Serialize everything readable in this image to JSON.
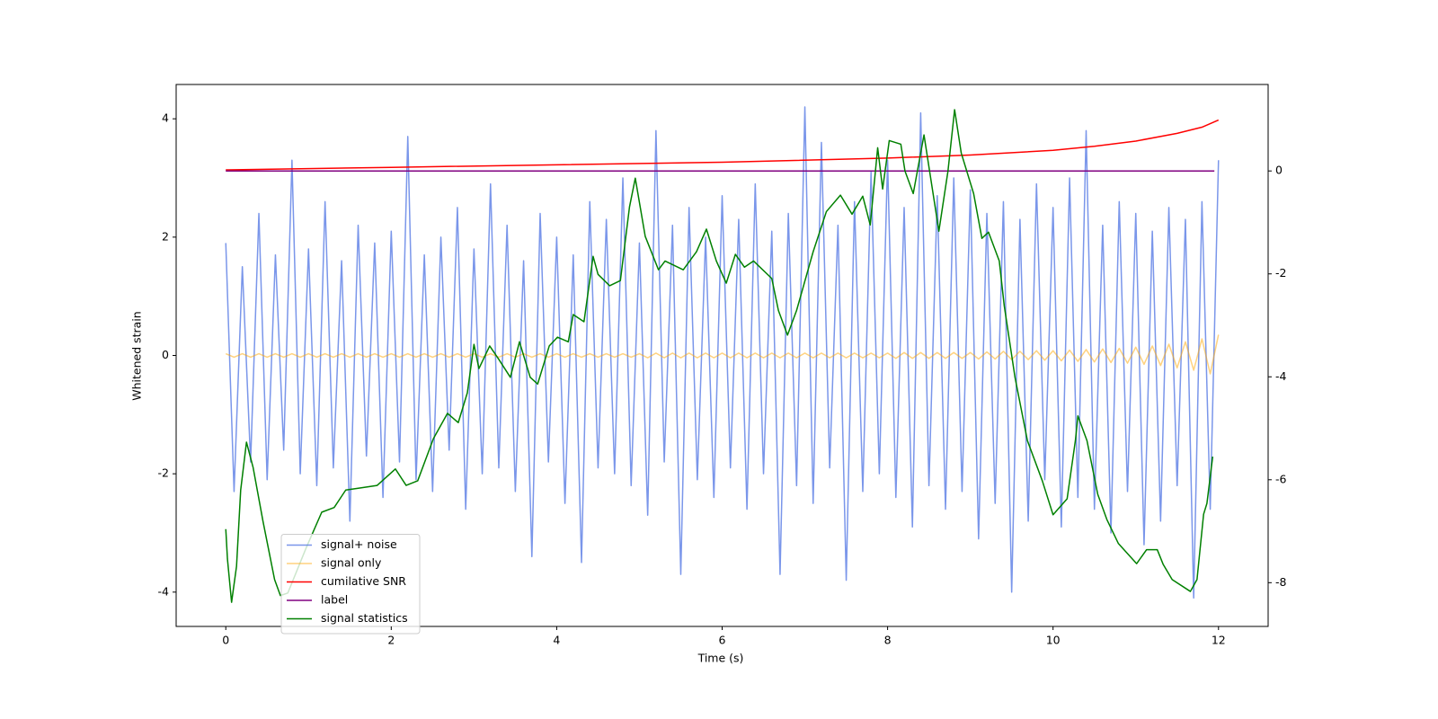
{
  "chart_data": {
    "type": "line",
    "xlabel": "Time (s)",
    "ylabel": "Whitened strain",
    "xlim": [
      -0.6,
      12.6
    ],
    "xticks": [
      0,
      2,
      4,
      6,
      8,
      10,
      12
    ],
    "ylim": [
      -4.58,
      4.58
    ],
    "yticks": [
      -4,
      -2,
      0,
      2,
      4
    ],
    "y2lim": [
      -8.85,
      1.68
    ],
    "y2ticks": [
      -8,
      -6,
      -4,
      -2,
      0
    ],
    "legend": "lower left",
    "x": [
      0,
      0.1,
      0.2,
      0.3,
      0.4,
      0.5,
      0.6,
      0.7,
      0.8,
      0.9,
      1,
      1.1,
      1.2,
      1.3,
      1.4,
      1.5,
      1.6,
      1.7,
      1.8,
      1.9,
      2,
      2.1,
      2.2,
      2.3,
      2.4,
      2.5,
      2.6,
      2.7,
      2.8,
      2.9,
      3,
      3.1,
      3.2,
      3.3,
      3.4,
      3.5,
      3.6,
      3.7,
      3.8,
      3.9,
      4,
      4.1,
      4.2,
      4.3,
      4.4,
      4.5,
      4.6,
      4.7,
      4.8,
      4.9,
      5,
      5.1,
      5.2,
      5.3,
      5.4,
      5.5,
      5.6,
      5.7,
      5.8,
      5.9,
      6,
      6.1,
      6.2,
      6.3,
      6.4,
      6.5,
      6.6,
      6.7,
      6.8,
      6.9,
      7,
      7.1,
      7.2,
      7.3,
      7.4,
      7.5,
      7.6,
      7.7,
      7.8,
      7.9,
      8,
      8.1,
      8.2,
      8.3,
      8.4,
      8.5,
      8.6,
      8.7,
      8.8,
      8.9,
      9,
      9.1,
      9.2,
      9.3,
      9.4,
      9.5,
      9.6,
      9.7,
      9.8,
      9.9,
      10,
      10.1,
      10.2,
      10.3,
      10.4,
      10.5,
      10.6,
      10.7,
      10.8,
      10.9,
      11,
      11.1,
      11.2,
      11.3,
      11.4,
      11.5,
      11.6,
      11.7,
      11.8,
      11.9,
      12
    ],
    "series": [
      {
        "name": "signal+ noise",
        "color": "#4169e1",
        "alpha": 0.7,
        "values": [
          1.9,
          -2.3,
          1.5,
          -1.8,
          2.4,
          -2.1,
          1.7,
          -1.6,
          3.3,
          -2.0,
          1.8,
          -2.2,
          2.6,
          -1.9,
          1.6,
          -2.8,
          2.2,
          -1.7,
          1.9,
          -2.4,
          2.1,
          -1.8,
          3.7,
          -2.1,
          1.7,
          -2.3,
          2.0,
          -1.6,
          2.5,
          -2.6,
          1.8,
          -2.0,
          2.9,
          -1.9,
          2.2,
          -2.3,
          1.6,
          -3.4,
          2.4,
          -1.8,
          2.0,
          -2.5,
          1.7,
          -3.5,
          2.6,
          -1.9,
          2.3,
          -2.0,
          3.0,
          -2.2,
          1.9,
          -2.7,
          3.8,
          -1.8,
          2.2,
          -3.7,
          2.5,
          -2.1,
          2.0,
          -2.4,
          2.7,
          -1.9,
          2.3,
          -2.6,
          2.9,
          -2.0,
          2.1,
          -3.7,
          2.4,
          -2.2,
          4.2,
          -2.5,
          3.6,
          -1.9,
          2.2,
          -3.8,
          2.6,
          -2.3,
          3.1,
          -2.0,
          3.3,
          -2.4,
          2.5,
          -2.9,
          4.1,
          -2.2,
          2.7,
          -2.6,
          3.0,
          -2.3,
          2.8,
          -3.1,
          2.4,
          -2.5,
          2.6,
          -4.0,
          2.3,
          -2.8,
          2.9,
          -2.1,
          2.5,
          -2.9,
          3.0,
          -2.4,
          3.8,
          -2.6,
          2.2,
          -3.0,
          2.6,
          -2.3,
          2.4,
          -3.2,
          2.1,
          -2.8,
          2.5,
          -2.2,
          2.3,
          -4.1,
          2.6,
          -2.6,
          3.3
        ]
      },
      {
        "name": "signal only",
        "color": "#ffa500",
        "alpha": 0.5,
        "values": [
          0.03,
          -0.03,
          0.03,
          -0.03,
          0.03,
          -0.03,
          0.03,
          -0.03,
          0.03,
          -0.03,
          0.03,
          -0.03,
          0.03,
          -0.03,
          0.03,
          -0.03,
          0.03,
          -0.03,
          0.03,
          -0.03,
          0.03,
          -0.03,
          0.03,
          -0.03,
          0.03,
          -0.03,
          0.03,
          -0.03,
          0.03,
          -0.03,
          0.03,
          -0.03,
          0.03,
          -0.03,
          0.03,
          -0.03,
          0.03,
          -0.03,
          0.03,
          -0.03,
          0.03,
          -0.03,
          0.03,
          -0.03,
          0.03,
          -0.03,
          0.03,
          -0.03,
          0.03,
          -0.03,
          0.03,
          -0.04,
          0.04,
          -0.04,
          0.04,
          -0.04,
          0.04,
          -0.04,
          0.04,
          -0.04,
          0.04,
          -0.04,
          0.04,
          -0.04,
          0.04,
          -0.04,
          0.04,
          -0.04,
          0.04,
          -0.04,
          0.04,
          -0.04,
          0.04,
          -0.04,
          0.04,
          -0.04,
          0.04,
          -0.04,
          0.04,
          -0.04,
          0.04,
          -0.05,
          0.05,
          -0.05,
          0.05,
          -0.05,
          0.05,
          -0.05,
          0.05,
          -0.05,
          0.05,
          -0.06,
          0.06,
          -0.06,
          0.07,
          -0.07,
          0.07,
          -0.07,
          0.08,
          -0.08,
          0.08,
          -0.09,
          0.09,
          -0.1,
          0.1,
          -0.11,
          0.11,
          -0.12,
          0.12,
          -0.13,
          0.14,
          -0.15,
          0.16,
          -0.17,
          0.19,
          -0.21,
          0.23,
          -0.25,
          0.28,
          -0.31,
          0.35
        ]
      },
      {
        "name": "cumilative SNR",
        "color": "#ff0000",
        "axis": "y2",
        "x": [
          0,
          2,
          4,
          6,
          8,
          9,
          10,
          10.5,
          11,
          11.5,
          11.8,
          12
        ],
        "values": [
          0.02,
          0.07,
          0.12,
          0.17,
          0.25,
          0.31,
          0.4,
          0.48,
          0.58,
          0.73,
          0.85,
          0.99
        ]
      },
      {
        "name": "label",
        "color": "#800080",
        "axis": "y2",
        "x": [
          0,
          11.95
        ],
        "values": [
          0,
          0
        ]
      },
      {
        "name": "signal statistics",
        "color": "#008000",
        "axis": "y2",
        "x": [
          0,
          0.02,
          0.07,
          0.13,
          0.18,
          0.25,
          0.33,
          0.45,
          0.59,
          0.66,
          0.75,
          0.97,
          1.16,
          1.31,
          1.45,
          1.62,
          1.83,
          2.05,
          2.18,
          2.32,
          2.51,
          2.68,
          2.81,
          2.92,
          3.0,
          3.06,
          3.19,
          3.3,
          3.44,
          3.55,
          3.68,
          3.77,
          3.91,
          4.01,
          4.14,
          4.2,
          4.33,
          4.44,
          4.5,
          4.64,
          4.77,
          4.88,
          4.95,
          5.07,
          5.23,
          5.31,
          5.53,
          5.69,
          5.81,
          5.93,
          6.05,
          6.16,
          6.27,
          6.38,
          6.6,
          6.68,
          6.79,
          6.9,
          7.1,
          7.26,
          7.43,
          7.57,
          7.7,
          7.79,
          7.88,
          7.94,
          8.02,
          8.16,
          8.21,
          8.31,
          8.44,
          8.62,
          8.73,
          8.81,
          8.89,
          9.04,
          9.14,
          9.22,
          9.35,
          9.41,
          9.54,
          9.69,
          9.87,
          10.0,
          10.17,
          10.27,
          10.3,
          10.41,
          10.54,
          10.65,
          10.79,
          11.01,
          11.13,
          11.26,
          11.33,
          11.44,
          11.66,
          11.74,
          11.82,
          11.86,
          11.93
        ],
        "values": [
          -6.96,
          -7.54,
          -8.38,
          -7.68,
          -6.2,
          -5.27,
          -5.76,
          -6.81,
          -7.94,
          -8.25,
          -8.2,
          -7.33,
          -6.63,
          -6.54,
          -6.2,
          -6.16,
          -6.11,
          -5.79,
          -6.11,
          -6.02,
          -5.2,
          -4.71,
          -4.89,
          -4.31,
          -3.37,
          -3.84,
          -3.4,
          -3.66,
          -4.01,
          -3.32,
          -4.01,
          -4.14,
          -3.4,
          -3.23,
          -3.32,
          -2.79,
          -2.93,
          -1.66,
          -2.01,
          -2.23,
          -2.13,
          -0.7,
          -0.14,
          -1.27,
          -1.92,
          -1.75,
          -1.92,
          -1.57,
          -1.13,
          -1.75,
          -2.18,
          -1.62,
          -1.87,
          -1.75,
          -2.09,
          -2.71,
          -3.19,
          -2.71,
          -1.57,
          -0.79,
          -0.47,
          -0.84,
          -0.49,
          -1.05,
          0.45,
          -0.35,
          0.59,
          0.52,
          0,
          -0.44,
          0.7,
          -1.17,
          0,
          1.19,
          0.35,
          -0.44,
          -1.31,
          -1.19,
          -1.75,
          -2.62,
          -4.01,
          -5.24,
          -6.02,
          -6.68,
          -6.37,
          -5.24,
          -4.76,
          -5.24,
          -6.28,
          -6.77,
          -7.24,
          -7.63,
          -7.36,
          -7.36,
          -7.64,
          -7.94,
          -8.17,
          -7.94,
          -6.67,
          -6.46,
          -5.55
        ]
      }
    ]
  }
}
